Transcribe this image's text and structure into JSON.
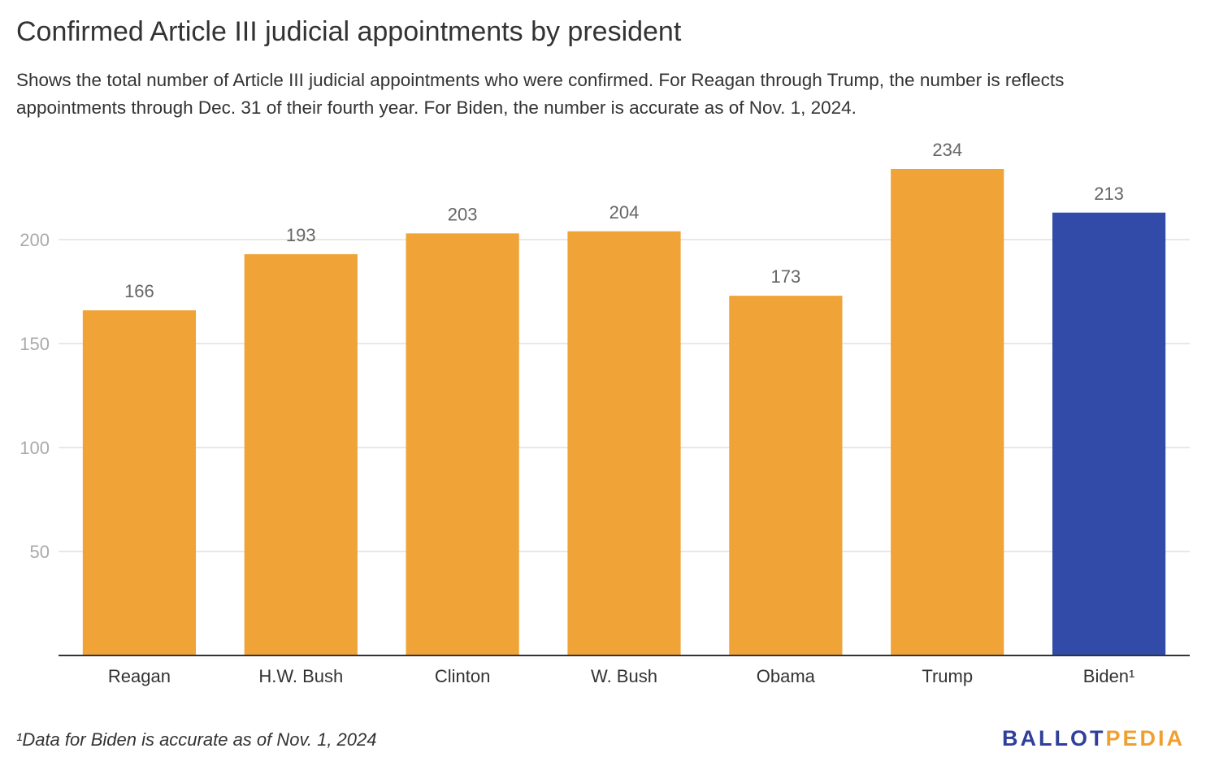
{
  "title": "Confirmed Article III judicial appointments by president",
  "subtitle": "Shows the total number of Article III judicial appointments who were confirmed. For Reagan through Trump, the number is reflects appointments through Dec. 31 of their fourth year. For Biden, the number is accurate as of Nov. 1, 2024.",
  "footnote": "¹Data for Biden is accurate as of Nov. 1, 2024",
  "logo": {
    "part1": "BALLOT",
    "part2": "PEDIA"
  },
  "colors": {
    "default_bar": "#f0a336",
    "highlight_bar": "#334ba8",
    "gridline": "#e0e0e0",
    "axis": "#333333",
    "tick_label": "#aaaaaa",
    "value_label": "#666666"
  },
  "chart_data": {
    "type": "bar",
    "categories": [
      "Reagan",
      "H.W. Bush",
      "Clinton",
      "W. Bush",
      "Obama",
      "Trump",
      "Biden¹"
    ],
    "values": [
      166,
      193,
      203,
      204,
      173,
      234,
      213
    ],
    "highlight": [
      "Biden¹"
    ],
    "ylim": [
      0,
      234
    ],
    "yticks": [
      50,
      100,
      150,
      200
    ],
    "xlabel": "",
    "ylabel": "",
    "grid": true,
    "legend": "none",
    "data_labels": true
  }
}
